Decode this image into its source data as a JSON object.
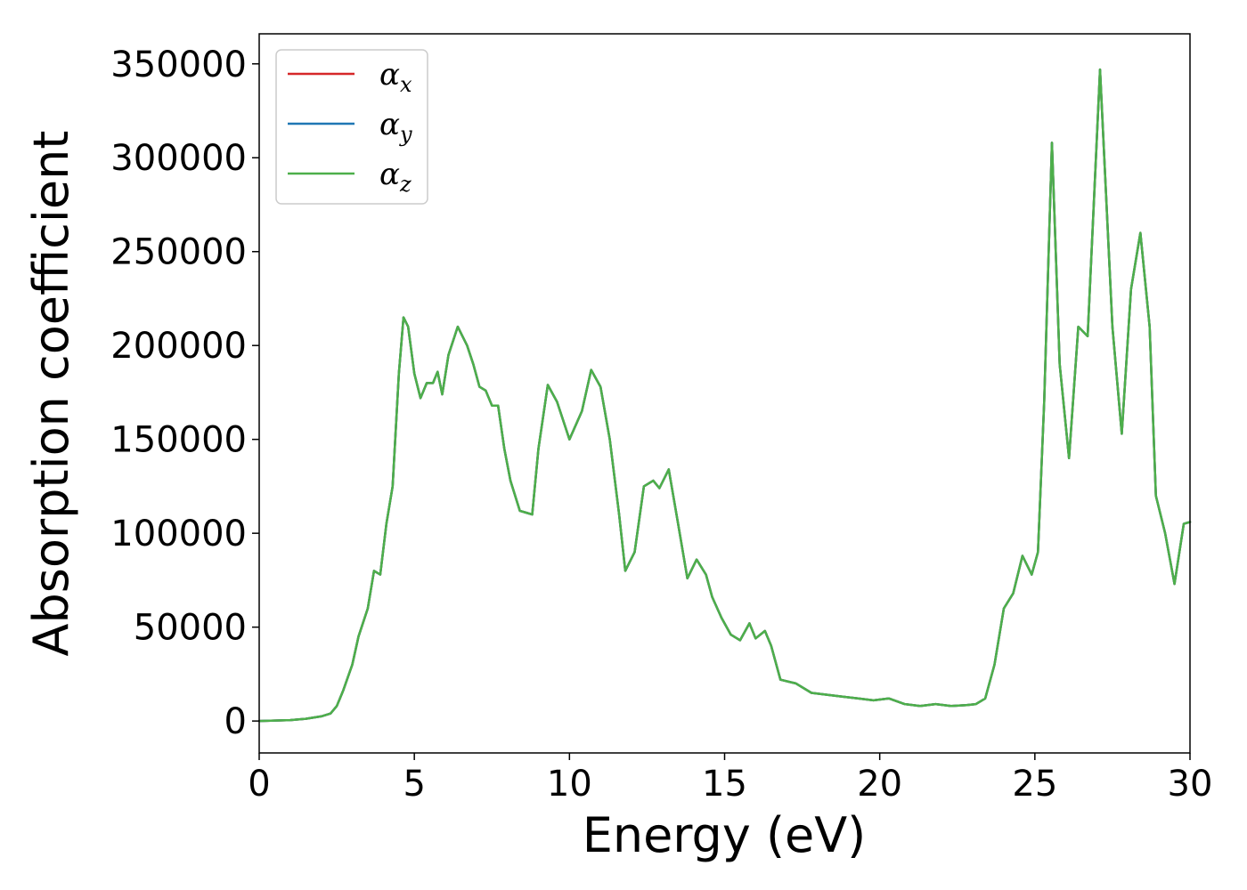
{
  "chart_data": {
    "type": "line",
    "xlabel": "Energy (eV)",
    "ylabel": "Absorption coefficient",
    "xlim": [
      0,
      30
    ],
    "ylim": [
      -17000,
      366000
    ],
    "xticks": [
      "0",
      "5",
      "10",
      "15",
      "20",
      "25",
      "30"
    ],
    "yticks": [
      "0",
      "50000",
      "100000",
      "150000",
      "200000",
      "250000",
      "300000",
      "350000"
    ],
    "grid": false,
    "legend_position": "top-left",
    "legend": [
      {
        "symbol": "α",
        "sub": "x",
        "color": "#d62728"
      },
      {
        "symbol": "α",
        "sub": "y",
        "color": "#1f77b4"
      },
      {
        "symbol": "α",
        "sub": "z",
        "color": "#4daf4a"
      }
    ],
    "x": [
      0,
      1,
      1.5,
      2,
      2.3,
      2.5,
      2.7,
      3,
      3.2,
      3.5,
      3.7,
      3.9,
      4.1,
      4.3,
      4.5,
      4.65,
      4.8,
      5.0,
      5.2,
      5.4,
      5.6,
      5.75,
      5.9,
      6.1,
      6.4,
      6.7,
      6.9,
      7.1,
      7.3,
      7.5,
      7.7,
      7.9,
      8.1,
      8.4,
      8.6,
      8.8,
      9.0,
      9.3,
      9.6,
      10.0,
      10.4,
      10.7,
      11.0,
      11.3,
      11.6,
      11.8,
      12.1,
      12.4,
      12.7,
      12.9,
      13.2,
      13.5,
      13.8,
      14.1,
      14.4,
      14.6,
      14.9,
      15.2,
      15.5,
      15.8,
      16.0,
      16.3,
      16.5,
      16.8,
      17.3,
      17.8,
      18.3,
      18.8,
      19.3,
      19.8,
      20.3,
      20.8,
      21.3,
      21.8,
      22.3,
      22.8,
      23.1,
      23.4,
      23.7,
      24.0,
      24.3,
      24.6,
      24.9,
      25.1,
      25.3,
      25.55,
      25.8,
      26.1,
      26.4,
      26.7,
      27.1,
      27.5,
      27.8,
      28.1,
      28.4,
      28.7,
      28.9,
      29.2,
      29.5,
      29.8,
      30.0
    ],
    "series": [
      {
        "name": "α_x",
        "color": "#d62728",
        "values": [
          0,
          500,
          1200,
          2500,
          4000,
          8000,
          16000,
          30000,
          45000,
          60000,
          80000,
          78000,
          105000,
          125000,
          185000,
          215000,
          210000,
          185000,
          172000,
          180000,
          180000,
          186000,
          174000,
          195000,
          210000,
          200000,
          190000,
          178000,
          176000,
          168000,
          168000,
          145000,
          128000,
          112000,
          111000,
          110000,
          145000,
          179000,
          170000,
          150000,
          165000,
          187000,
          178000,
          150000,
          110000,
          80000,
          90000,
          125000,
          128000,
          124000,
          134000,
          105000,
          76000,
          86000,
          78000,
          66000,
          55000,
          46000,
          43000,
          52000,
          44000,
          48000,
          40000,
          22000,
          20000,
          15000,
          14000,
          13000,
          12000,
          11000,
          12000,
          9000,
          8000,
          9000,
          8000,
          8500,
          9000,
          12000,
          30000,
          60000,
          68000,
          88000,
          78000,
          90000,
          170000,
          308000,
          190000,
          140000,
          210000,
          205000,
          347000,
          210000,
          153000,
          230000,
          260000,
          210000,
          120000,
          100000,
          73000,
          105000,
          106000
        ]
      },
      {
        "name": "α_y",
        "color": "#1f77b4",
        "values": [
          0,
          500,
          1200,
          2500,
          4000,
          8000,
          16000,
          30000,
          45000,
          60000,
          80000,
          78000,
          105000,
          125000,
          185000,
          215000,
          210000,
          185000,
          172000,
          180000,
          180000,
          186000,
          174000,
          195000,
          210000,
          200000,
          190000,
          178000,
          176000,
          168000,
          168000,
          145000,
          128000,
          112000,
          111000,
          110000,
          145000,
          179000,
          170000,
          150000,
          165000,
          187000,
          178000,
          150000,
          110000,
          80000,
          90000,
          125000,
          128000,
          124000,
          134000,
          105000,
          76000,
          86000,
          78000,
          66000,
          55000,
          46000,
          43000,
          52000,
          44000,
          48000,
          40000,
          22000,
          20000,
          15000,
          14000,
          13000,
          12000,
          11000,
          12000,
          9000,
          8000,
          9000,
          8000,
          8500,
          9000,
          12000,
          30000,
          60000,
          68000,
          88000,
          78000,
          90000,
          170000,
          308000,
          190000,
          140000,
          210000,
          205000,
          347000,
          210000,
          153000,
          230000,
          260000,
          210000,
          120000,
          100000,
          73000,
          105000,
          106000
        ]
      },
      {
        "name": "α_z",
        "color": "#4daf4a",
        "values": [
          0,
          500,
          1200,
          2500,
          4000,
          8000,
          16000,
          30000,
          45000,
          60000,
          80000,
          78000,
          105000,
          125000,
          185000,
          215000,
          210000,
          185000,
          172000,
          180000,
          180000,
          186000,
          174000,
          195000,
          210000,
          200000,
          190000,
          178000,
          176000,
          168000,
          168000,
          145000,
          128000,
          112000,
          111000,
          110000,
          145000,
          179000,
          170000,
          150000,
          165000,
          187000,
          178000,
          150000,
          110000,
          80000,
          90000,
          125000,
          128000,
          124000,
          134000,
          105000,
          76000,
          86000,
          78000,
          66000,
          55000,
          46000,
          43000,
          52000,
          44000,
          48000,
          40000,
          22000,
          20000,
          15000,
          14000,
          13000,
          12000,
          11000,
          12000,
          9000,
          8000,
          9000,
          8000,
          8500,
          9000,
          12000,
          30000,
          60000,
          68000,
          88000,
          78000,
          90000,
          170000,
          308000,
          190000,
          140000,
          210000,
          205000,
          347000,
          210000,
          153000,
          230000,
          260000,
          210000,
          120000,
          100000,
          73000,
          105000,
          106000
        ]
      }
    ]
  }
}
